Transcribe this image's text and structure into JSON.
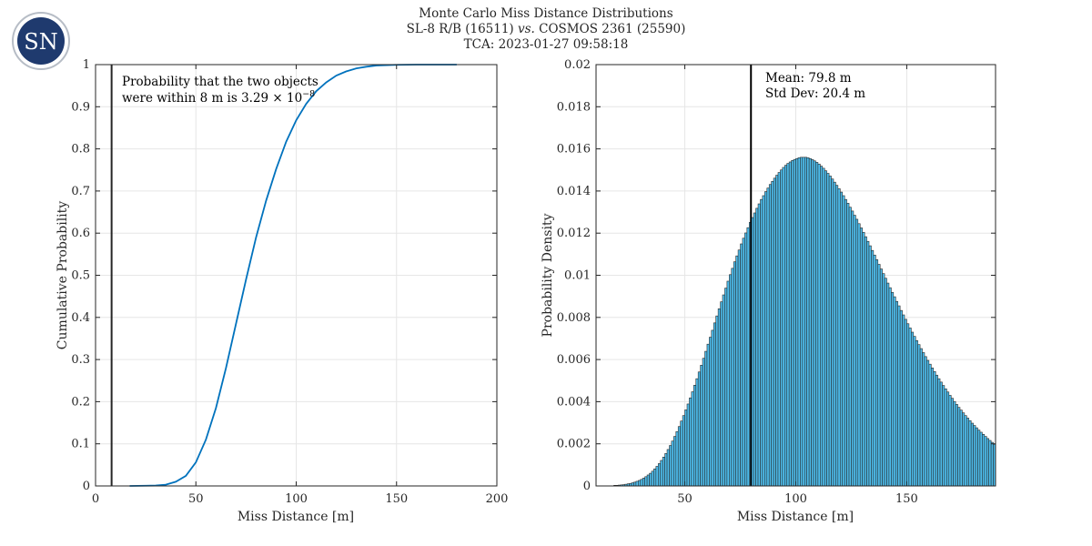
{
  "logo": {
    "text": "SN",
    "color": "#1f3a6e"
  },
  "title": {
    "line1": "Monte Carlo Miss Distance Distributions",
    "line2_a": "SL-8 R/B (16511)",
    "line2_vs": "vs.",
    "line2_b": "COSMOS 2361 (25590)",
    "line3": "TCA: 2023-01-27 09:58:18"
  },
  "chart_data": [
    {
      "type": "line",
      "xlabel": "Miss Distance [m]",
      "ylabel": "Cumulative Probability",
      "xlim": [
        0,
        200
      ],
      "ylim": [
        0,
        1
      ],
      "xticks": [
        "0",
        "50",
        "100",
        "150",
        "200"
      ],
      "yticks": [
        "0",
        "0.1",
        "0.2",
        "0.3",
        "0.4",
        "0.5",
        "0.6",
        "0.7",
        "0.8",
        "0.9",
        "1"
      ],
      "grid": true,
      "color": "#0072bd",
      "threshold_line": {
        "x": 8,
        "color": "#262626"
      },
      "annotation": {
        "line1": "Probability that the two objects",
        "line2_prefix": "were within 8 m is 3.29 × 10",
        "line2_exp": "−8"
      },
      "x": [
        17,
        25,
        30,
        35,
        40,
        45,
        50,
        55,
        60,
        65,
        70,
        75,
        80,
        85,
        90,
        95,
        100,
        105,
        110,
        115,
        120,
        125,
        130,
        135,
        140,
        150,
        160,
        170,
        180
      ],
      "y": [
        0,
        0.0005,
        0.001,
        0.003,
        0.01,
        0.024,
        0.056,
        0.11,
        0.185,
        0.28,
        0.385,
        0.49,
        0.59,
        0.677,
        0.752,
        0.817,
        0.868,
        0.907,
        0.937,
        0.958,
        0.974,
        0.984,
        0.991,
        0.995,
        0.998,
        0.9995,
        1,
        1,
        1
      ]
    },
    {
      "type": "bar",
      "xlabel": "Miss Distance [m]",
      "ylabel": "Probability Density",
      "xlim": [
        10,
        190
      ],
      "ylim": [
        0,
        0.02
      ],
      "xticks": [
        "50",
        "100",
        "150"
      ],
      "yticks": [
        "0",
        "0.002",
        "0.004",
        "0.006",
        "0.008",
        "0.01",
        "0.012",
        "0.014",
        "0.016",
        "0.018",
        "0.02"
      ],
      "grid": true,
      "bar_color": "#4dbeee",
      "edge_color": "#262626",
      "mean_line": {
        "x": 79.8,
        "color": "#000000"
      },
      "annotation": {
        "line1": "Mean: 79.8 m",
        "line2": "Std Dev: 20.4 m"
      },
      "bin_width": 1,
      "bin_start": 18,
      "values": [
        3e-05,
        3e-05,
        4e-05,
        5e-05,
        6e-05,
        8e-05,
        0.0001,
        0.00012,
        0.00015,
        0.00018,
        0.00022,
        0.00026,
        0.00031,
        0.00037,
        0.00044,
        0.00052,
        0.0006,
        0.0007,
        0.00081,
        0.00093,
        0.00106,
        0.00121,
        0.00137,
        0.00154,
        0.00173,
        0.00192,
        0.00213,
        0.00235,
        0.00258,
        0.00282,
        0.00308,
        0.00334,
        0.00361,
        0.00389,
        0.00418,
        0.00447,
        0.00478,
        0.00509,
        0.00541,
        0.00573,
        0.00606,
        0.00639,
        0.00673,
        0.00706,
        0.00739,
        0.00774,
        0.00807,
        0.00841,
        0.00874,
        0.00907,
        0.00939,
        0.00972,
        0.01003,
        0.01033,
        0.01064,
        0.01092,
        0.0112,
        0.01149,
        0.01176,
        0.01201,
        0.01226,
        0.01251,
        0.01274,
        0.01296,
        0.01318,
        0.01339,
        0.0136,
        0.01378,
        0.01397,
        0.01414,
        0.01431,
        0.01446,
        0.01461,
        0.01475,
        0.01488,
        0.015,
        0.01512,
        0.01522,
        0.01531,
        0.01538,
        0.01545,
        0.0155,
        0.01554,
        0.01558,
        0.0156,
        0.0156,
        0.0156,
        0.01558,
        0.01554,
        0.01549,
        0.01543,
        0.01536,
        0.01528,
        0.01518,
        0.01508,
        0.01496,
        0.01484,
        0.01471,
        0.01457,
        0.01442,
        0.01427,
        0.01411,
        0.01395,
        0.01378,
        0.0136,
        0.01342,
        0.01323,
        0.01305,
        0.01285,
        0.01266,
        0.01245,
        0.01225,
        0.01204,
        0.01183,
        0.01161,
        0.0114,
        0.01118,
        0.01096,
        0.01074,
        0.01052,
        0.0103,
        0.01008,
        0.00986,
        0.00963,
        0.00941,
        0.00919,
        0.00898,
        0.00876,
        0.00855,
        0.00833,
        0.00812,
        0.00791,
        0.0077,
        0.0075,
        0.0073,
        0.0071,
        0.0069,
        0.00671,
        0.00652,
        0.00633,
        0.00614,
        0.00596,
        0.00578,
        0.0056,
        0.00543,
        0.00526,
        0.00509,
        0.00493,
        0.00477,
        0.00461,
        0.00446,
        0.0043,
        0.00416,
        0.00401,
        0.00387,
        0.00373,
        0.0036,
        0.00347,
        0.00334,
        0.00322,
        0.0031,
        0.00298,
        0.00287,
        0.00276,
        0.00265,
        0.00255,
        0.00245,
        0.00235,
        0.00225,
        0.00216,
        0.00207,
        0.00198
      ]
    }
  ]
}
